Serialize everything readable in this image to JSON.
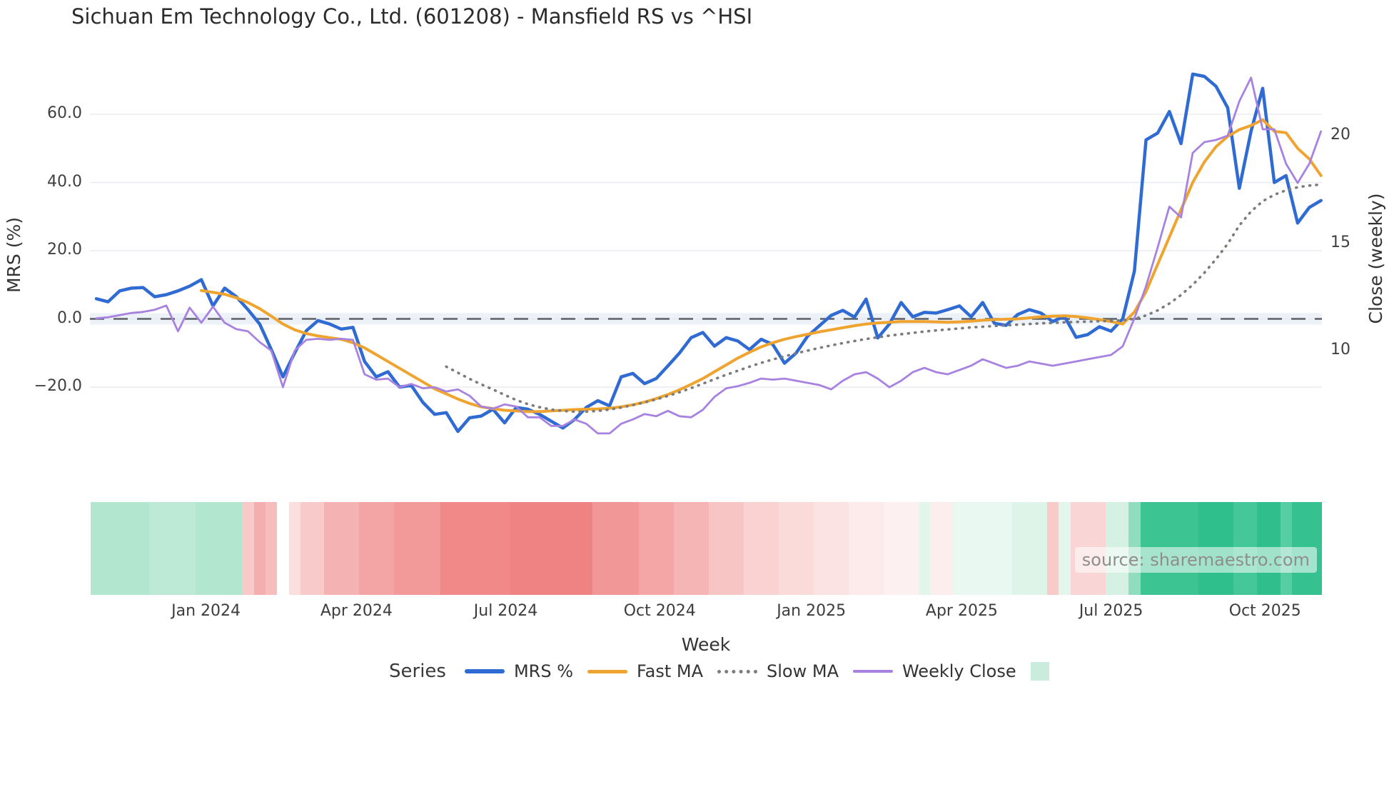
{
  "title": "Sichuan Em Technology Co., Ltd. (601208) - Mansfield RS vs ^HSI",
  "source_note": "source: sharemaestro.com",
  "colors": {
    "mrs": "#2f6bd2",
    "fast_ma": "#eea42f",
    "slow_ma": "#7c7c7c",
    "weekly_close": "#a782e0",
    "zero_dash": "#5c6066",
    "zero_band": "#dde7f0",
    "gridline": "#e8ebf1",
    "heat_green_strong": "#2fbf8c",
    "heat_green_light": "#b2e6ce",
    "heat_red_strong": "#ef8282",
    "heat_red_light": "#fce3e3",
    "legend_square": "#c9ecdc"
  },
  "axes": {
    "left": {
      "title": "MRS (%)",
      "tick_labels": [
        "60.0",
        "40.0",
        "20.0",
        "0.0",
        "−20.0"
      ],
      "tick_values": [
        60,
        40,
        20,
        0,
        -20
      ],
      "range": [
        -38,
        75
      ]
    },
    "right": {
      "title": "Close (weekly)",
      "tick_labels": [
        "20",
        "15",
        "10"
      ],
      "tick_values": [
        20,
        15,
        10
      ],
      "range": [
        5,
        23.5
      ]
    },
    "x": {
      "title": "Week",
      "tick_labels": [
        "Jan 2024",
        "Apr 2024",
        "Jul 2024",
        "Oct 2024",
        "Jan 2025",
        "Apr 2025",
        "Jul 2025",
        "Oct 2025"
      ],
      "tick_weeks": [
        9.4,
        22.3,
        35.1,
        48.3,
        61.3,
        74.2,
        87.0,
        100.2
      ]
    }
  },
  "legend": {
    "title": "Series",
    "items": [
      {
        "label": "MRS %",
        "swatch": "line",
        "color": "#2f6bd2",
        "thickness": 6
      },
      {
        "label": "Fast MA",
        "swatch": "line",
        "color": "#eea42f",
        "thickness": 5
      },
      {
        "label": "Slow MA",
        "swatch": "dotted",
        "color": "#7c7c7c",
        "thickness": 5
      },
      {
        "label": "Weekly Close",
        "swatch": "line",
        "color": "#a782e0",
        "thickness": 4
      },
      {
        "label": "",
        "swatch": "square",
        "color": "#c9ecdc",
        "thickness": 26
      }
    ]
  },
  "chart_data": {
    "type": "line",
    "title": "Sichuan Em Technology Co., Ltd. (601208) - Mansfield RS vs ^HSI",
    "x_unit": "week-index",
    "n_weeks": 106,
    "zero_line": {
      "axis": "left",
      "value": 0,
      "style": "dashed"
    },
    "grid": true,
    "legend_position": "bottom",
    "series": [
      {
        "name": "MRS %",
        "axis": "left",
        "color": "#2f6bd2",
        "width": 4.5,
        "dash": "",
        "values": [
          5.9,
          5.0,
          8.2,
          9.0,
          9.2,
          6.5,
          7.1,
          8.2,
          9.6,
          11.5,
          3.8,
          9.0,
          6.5,
          2.7,
          -1.5,
          -9.0,
          -17.0,
          -10.0,
          -3.5,
          -0.5,
          -1.5,
          -3.0,
          -2.5,
          -12.5,
          -17.0,
          -15.5,
          -20.0,
          -19.5,
          -24.5,
          -28.0,
          -27.5,
          -33.0,
          -29.0,
          -28.5,
          -26.5,
          -30.5,
          -26.0,
          -26.5,
          -28.0,
          -30.0,
          -32.0,
          -29.5,
          -26.0,
          -24.0,
          -25.5,
          -17.0,
          -16.0,
          -19.0,
          -17.5,
          -13.8,
          -10.0,
          -5.5,
          -4.0,
          -8.0,
          -5.5,
          -6.5,
          -9.0,
          -6.0,
          -7.5,
          -13.0,
          -10.0,
          -5.0,
          -2.0,
          1.0,
          2.5,
          0.5,
          5.8,
          -5.6,
          -1.5,
          4.8,
          0.6,
          1.9,
          1.7,
          2.7,
          3.8,
          0.6,
          4.8,
          -1.3,
          -1.9,
          1.3,
          2.7,
          1.7,
          -0.8,
          0.8,
          -5.4,
          -4.6,
          -2.3,
          -3.6,
          0.0,
          14.0,
          52.5,
          54.5,
          60.8,
          51.4,
          71.8,
          71.1,
          68.2,
          61.9,
          38.3,
          55.0,
          67.6,
          40.0,
          42.0,
          28.1,
          32.7,
          34.7
        ]
      },
      {
        "name": "Fast MA",
        "axis": "left",
        "color": "#eea42f",
        "width": 4,
        "dash": "",
        "values": [
          null,
          null,
          null,
          null,
          null,
          null,
          null,
          null,
          null,
          8.3,
          7.8,
          7.2,
          6.2,
          4.8,
          3.0,
          0.8,
          -1.5,
          -3.2,
          -4.3,
          -5.0,
          -5.5,
          -6.0,
          -7.0,
          -8.5,
          -10.5,
          -12.5,
          -14.5,
          -16.5,
          -18.5,
          -20.5,
          -22.0,
          -23.5,
          -24.8,
          -25.8,
          -26.3,
          -26.8,
          -27.0,
          -27.2,
          -27.2,
          -27.0,
          -26.8,
          -26.6,
          -26.5,
          -26.4,
          -26.2,
          -25.8,
          -25.2,
          -24.4,
          -23.4,
          -22.2,
          -20.8,
          -19.2,
          -17.5,
          -15.5,
          -13.5,
          -11.5,
          -9.8,
          -8.2,
          -7.0,
          -6.0,
          -5.2,
          -4.5,
          -3.8,
          -3.2,
          -2.6,
          -2.0,
          -1.5,
          -1.2,
          -1.0,
          -0.8,
          -0.8,
          -0.8,
          -0.9,
          -1.0,
          -0.9,
          -0.7,
          -0.4,
          -0.2,
          -0.1,
          0.0,
          0.3,
          0.6,
          0.8,
          0.9,
          0.7,
          0.3,
          -0.2,
          -0.8,
          -1.5,
          2.0,
          8.0,
          16.0,
          24.0,
          32.0,
          40.0,
          46.0,
          50.5,
          53.5,
          55.5,
          56.7,
          58.4,
          55.0,
          54.6,
          50.0,
          46.9,
          42.0
        ]
      },
      {
        "name": "Slow MA",
        "axis": "left",
        "color": "#7c7c7c",
        "width": 3.6,
        "dash": "1 8.5",
        "values": [
          null,
          null,
          null,
          null,
          null,
          null,
          null,
          null,
          null,
          null,
          null,
          null,
          null,
          null,
          null,
          null,
          null,
          null,
          null,
          null,
          null,
          null,
          null,
          null,
          null,
          null,
          null,
          null,
          null,
          null,
          -14.0,
          -15.8,
          -17.6,
          -19.2,
          -20.7,
          -22.3,
          -23.8,
          -25.0,
          -25.9,
          -26.6,
          -27.0,
          -27.2,
          -27.2,
          -27.0,
          -26.6,
          -26.0,
          -25.3,
          -24.5,
          -23.6,
          -22.6,
          -21.5,
          -20.3,
          -19.0,
          -17.7,
          -16.4,
          -15.2,
          -14.0,
          -12.9,
          -11.9,
          -11.0,
          -10.1,
          -9.3,
          -8.5,
          -7.8,
          -7.1,
          -6.5,
          -5.9,
          -5.4,
          -4.9,
          -4.5,
          -4.1,
          -3.7,
          -3.4,
          -3.1,
          -2.8,
          -2.5,
          -2.3,
          -2.1,
          -1.9,
          -1.7,
          -1.5,
          -1.3,
          -1.2,
          -1.0,
          -0.9,
          -0.8,
          -0.7,
          -0.6,
          -0.4,
          0.0,
          1.0,
          2.5,
          4.5,
          7.0,
          10.0,
          13.5,
          17.5,
          22.0,
          27.4,
          31.5,
          34.5,
          36.4,
          37.7,
          38.6,
          39.1,
          39.4
        ]
      },
      {
        "name": "Weekly Close",
        "axis": "right",
        "color": "#a782e0",
        "width": 2.8,
        "dash": "",
        "values": [
          11.5,
          11.55,
          11.65,
          11.75,
          11.8,
          11.9,
          12.1,
          10.9,
          12.0,
          11.3,
          12.05,
          11.3,
          11.0,
          10.9,
          10.4,
          10.0,
          8.3,
          10.0,
          10.5,
          10.55,
          10.5,
          10.55,
          10.5,
          8.9,
          8.65,
          8.7,
          8.3,
          8.45,
          8.25,
          8.3,
          8.1,
          8.2,
          7.9,
          7.4,
          7.3,
          7.5,
          7.4,
          6.9,
          6.9,
          6.5,
          6.5,
          6.8,
          6.6,
          6.15,
          6.15,
          6.6,
          6.8,
          7.05,
          6.95,
          7.2,
          6.95,
          6.9,
          7.25,
          7.85,
          8.25,
          8.35,
          8.5,
          8.7,
          8.65,
          8.7,
          8.6,
          8.5,
          8.4,
          8.2,
          8.6,
          8.9,
          9.0,
          8.7,
          8.3,
          8.6,
          9.0,
          9.2,
          9.0,
          8.9,
          9.1,
          9.3,
          9.6,
          9.4,
          9.2,
          9.3,
          9.5,
          9.4,
          9.3,
          9.4,
          9.5,
          9.6,
          9.7,
          9.8,
          10.2,
          11.5,
          13.0,
          14.8,
          16.7,
          16.2,
          19.2,
          19.7,
          19.8,
          20.0,
          21.6,
          22.7,
          20.3,
          20.3,
          18.7,
          17.8,
          18.7,
          20.2
        ]
      }
    ],
    "heatmap_runs": [
      [
        0,
        5,
        "#b2e6ce"
      ],
      [
        5,
        9,
        "#bdead6"
      ],
      [
        9,
        13,
        "#b2e6ce"
      ],
      [
        13,
        14,
        "#f7caca"
      ],
      [
        14,
        15,
        "#f3afaf"
      ],
      [
        15,
        16,
        "#f6bdbd"
      ],
      [
        16,
        17,
        "#ffffff"
      ],
      [
        17,
        18,
        "#fbdede"
      ],
      [
        18,
        20,
        "#f8caca"
      ],
      [
        20,
        23,
        "#f5b2b2"
      ],
      [
        23,
        26,
        "#f3a4a4"
      ],
      [
        26,
        30,
        "#f29a9a"
      ],
      [
        30,
        36,
        "#f18989"
      ],
      [
        36,
        43,
        "#ef8282"
      ],
      [
        43,
        47,
        "#f29797"
      ],
      [
        47,
        50,
        "#f4a5a5"
      ],
      [
        50,
        53,
        "#f6b5b5"
      ],
      [
        53,
        56,
        "#f8c5c5"
      ],
      [
        56,
        59,
        "#fad2d2"
      ],
      [
        59,
        62,
        "#fbdada"
      ],
      [
        62,
        65,
        "#fce3e3"
      ],
      [
        65,
        68,
        "#fdeaea"
      ],
      [
        68,
        71,
        "#fdf0f0"
      ],
      [
        71,
        72,
        "#e3f6ec"
      ],
      [
        72,
        74,
        "#fdeeee"
      ],
      [
        74,
        79,
        "#e9f8f1"
      ],
      [
        79,
        82,
        "#def4e9"
      ],
      [
        82,
        83,
        "#f8caca"
      ],
      [
        83,
        84,
        "#e3f6ec"
      ],
      [
        84,
        87,
        "#fad5d5"
      ],
      [
        87,
        89,
        "#d5f1e3"
      ],
      [
        89,
        90,
        "#8fdcbe"
      ],
      [
        90,
        95,
        "#3cc493"
      ],
      [
        95,
        98,
        "#2fbf8c"
      ],
      [
        98,
        100,
        "#45c79a"
      ],
      [
        100,
        102,
        "#2fbf8c"
      ],
      [
        102,
        103,
        "#57cda4"
      ],
      [
        103,
        106,
        "#35c190"
      ]
    ]
  }
}
